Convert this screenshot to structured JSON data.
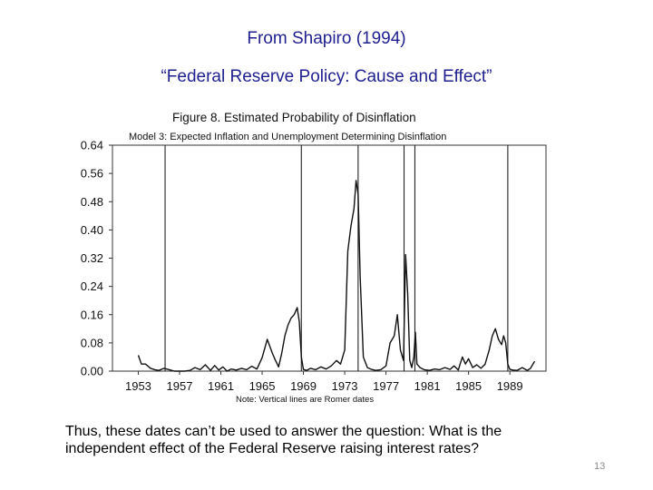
{
  "slide": {
    "title": "From Shapiro (1994)",
    "subtitle": "“Federal Reserve Policy: Cause and Effect”",
    "caption_line1": "Thus, these dates can’t be used to answer the question: What is the",
    "caption_line2": "independent effect of the Federal Reserve raising interest rates?",
    "page_number": "13"
  },
  "chart_data": {
    "type": "line",
    "title": "Figure 8.  Estimated Probability of Disinflation",
    "subtitle": "Model 3:  Expected Inflation and Unemployment Determining Disinflation",
    "note": "Note:  Vertical lines are Romer dates",
    "xlabel": "",
    "ylabel": "",
    "xlim": [
      1950.5,
      1992.5
    ],
    "ylim": [
      0.0,
      0.64
    ],
    "y_ticks": [
      {
        "v": 0.0,
        "label": "0.00"
      },
      {
        "v": 0.08,
        "label": "0.08"
      },
      {
        "v": 0.16,
        "label": "0.16"
      },
      {
        "v": 0.24,
        "label": "0.24"
      },
      {
        "v": 0.32,
        "label": "0.32"
      },
      {
        "v": 0.4,
        "label": "0.40"
      },
      {
        "v": 0.48,
        "label": "0.48"
      },
      {
        "v": 0.56,
        "label": "0.56"
      },
      {
        "v": 0.64,
        "label": "0.64"
      }
    ],
    "x_ticks": [
      {
        "v": 1953,
        "label": "1953"
      },
      {
        "v": 1957,
        "label": "1957"
      },
      {
        "v": 1961,
        "label": "1961"
      },
      {
        "v": 1965,
        "label": "1965"
      },
      {
        "v": 1969,
        "label": "1969"
      },
      {
        "v": 1973,
        "label": "1973"
      },
      {
        "v": 1977,
        "label": "1977"
      },
      {
        "v": 1981,
        "label": "1981"
      },
      {
        "v": 1985,
        "label": "1985"
      },
      {
        "v": 1989,
        "label": "1989"
      }
    ],
    "vertical_lines": [
      1955.6,
      1968.8,
      1974.3,
      1978.75,
      1979.8,
      1988.8
    ],
    "series": [
      {
        "name": "Estimated probability of disinflation",
        "x": [
          1953.0,
          1953.3,
          1953.7,
          1954.2,
          1954.6,
          1955.0,
          1955.5,
          1956.0,
          1956.5,
          1957.0,
          1957.5,
          1958.0,
          1958.5,
          1959.0,
          1959.5,
          1960.0,
          1960.4,
          1960.8,
          1961.2,
          1961.6,
          1962.0,
          1962.5,
          1963.0,
          1963.5,
          1964.0,
          1964.5,
          1965.0,
          1965.5,
          1966.0,
          1966.3,
          1966.6,
          1966.9,
          1967.2,
          1967.5,
          1967.8,
          1968.1,
          1968.4,
          1968.6,
          1968.8,
          1969.0,
          1969.3,
          1969.7,
          1970.2,
          1970.7,
          1971.2,
          1971.7,
          1972.2,
          1972.6,
          1973.0,
          1973.3,
          1973.6,
          1973.9,
          1974.1,
          1974.3,
          1974.5,
          1974.8,
          1975.2,
          1975.6,
          1976.0,
          1976.5,
          1977.0,
          1977.4,
          1977.8,
          1978.1,
          1978.4,
          1978.7,
          1978.9,
          1979.1,
          1979.3,
          1979.5,
          1979.7,
          1979.85,
          1980.0,
          1980.3,
          1980.7,
          1981.2,
          1981.7,
          1982.2,
          1982.7,
          1983.2,
          1983.6,
          1984.0,
          1984.4,
          1984.7,
          1985.0,
          1985.4,
          1985.8,
          1986.2,
          1986.6,
          1987.0,
          1987.3,
          1987.6,
          1987.9,
          1988.2,
          1988.4,
          1988.6,
          1988.8,
          1989.0,
          1989.3,
          1989.7,
          1990.2,
          1990.7,
          1991.0,
          1991.4
        ],
        "values": [
          0.045,
          0.02,
          0.02,
          0.008,
          0.004,
          0.002,
          0.008,
          0.004,
          0.0,
          0.0,
          0.0,
          0.002,
          0.01,
          0.004,
          0.018,
          0.002,
          0.016,
          0.003,
          0.012,
          0.0,
          0.006,
          0.003,
          0.008,
          0.004,
          0.014,
          0.006,
          0.038,
          0.09,
          0.05,
          0.03,
          0.012,
          0.05,
          0.1,
          0.13,
          0.15,
          0.16,
          0.18,
          0.14,
          0.04,
          0.005,
          0.002,
          0.008,
          0.004,
          0.012,
          0.006,
          0.015,
          0.03,
          0.02,
          0.06,
          0.34,
          0.41,
          0.46,
          0.54,
          0.5,
          0.27,
          0.04,
          0.01,
          0.005,
          0.002,
          0.004,
          0.015,
          0.08,
          0.1,
          0.16,
          0.06,
          0.03,
          0.33,
          0.22,
          0.03,
          0.01,
          0.04,
          0.11,
          0.02,
          0.01,
          0.004,
          0.002,
          0.006,
          0.004,
          0.01,
          0.005,
          0.015,
          0.003,
          0.04,
          0.02,
          0.035,
          0.01,
          0.018,
          0.008,
          0.02,
          0.06,
          0.1,
          0.12,
          0.09,
          0.075,
          0.1,
          0.08,
          0.02,
          0.005,
          0.003,
          0.002,
          0.01,
          0.002,
          0.008,
          0.028
        ]
      }
    ]
  }
}
